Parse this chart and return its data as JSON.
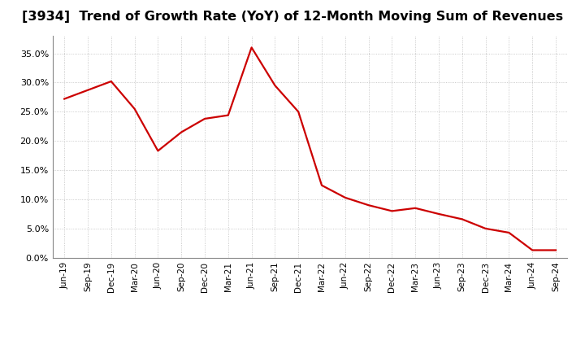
{
  "title": "[3934]  Trend of Growth Rate (YoY) of 12-Month Moving Sum of Revenues",
  "title_fontsize": 11.5,
  "line_color": "#cc0000",
  "line_width": 1.6,
  "background_color": "#ffffff",
  "plot_bg_color": "#ffffff",
  "grid_color": "#bbbbbb",
  "ylim": [
    0.0,
    0.38
  ],
  "yticks": [
    0.0,
    0.05,
    0.1,
    0.15,
    0.2,
    0.25,
    0.3,
    0.35
  ],
  "x_labels": [
    "Jun-19",
    "Sep-19",
    "Dec-19",
    "Mar-20",
    "Jun-20",
    "Sep-20",
    "Dec-20",
    "Mar-21",
    "Jun-21",
    "Sep-21",
    "Dec-21",
    "Mar-22",
    "Jun-22",
    "Sep-22",
    "Dec-22",
    "Mar-23",
    "Jun-23",
    "Sep-23",
    "Dec-23",
    "Mar-24",
    "Jun-24",
    "Sep-24"
  ],
  "y_values": [
    0.272,
    0.287,
    0.302,
    0.255,
    0.183,
    0.215,
    0.238,
    0.244,
    0.36,
    0.295,
    0.25,
    0.124,
    0.103,
    0.09,
    0.08,
    0.085,
    0.075,
    0.066,
    0.05,
    0.043,
    0.013,
    0.013
  ],
  "figsize": [
    7.2,
    4.4
  ],
  "dpi": 100
}
